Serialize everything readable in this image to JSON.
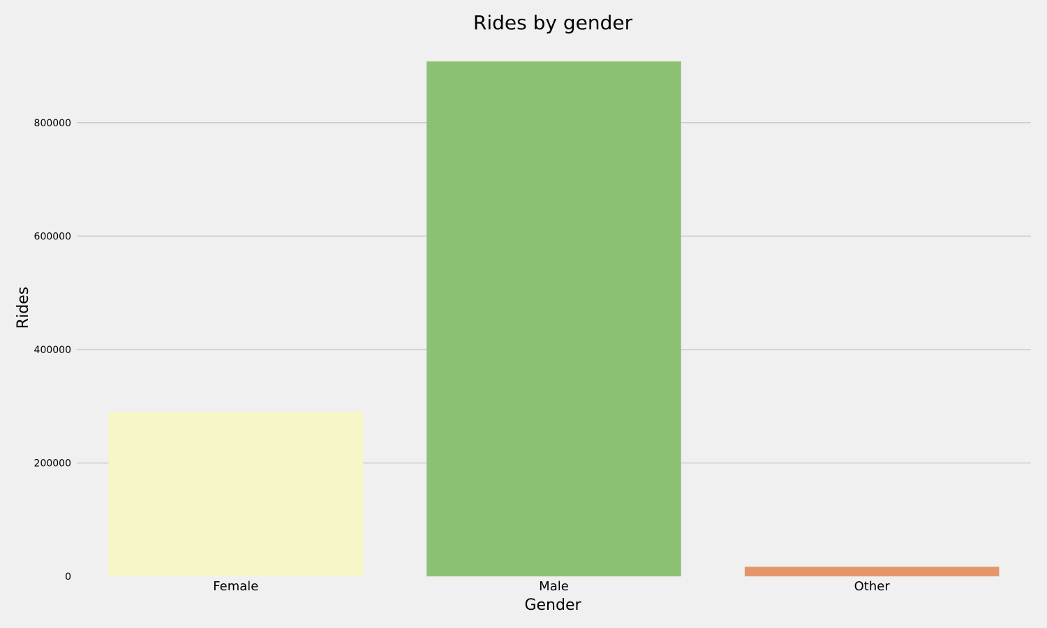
{
  "chart_data": {
    "type": "bar",
    "title": "Rides by gender",
    "xlabel": "Gender",
    "ylabel": "Rides",
    "categories": [
      "Female",
      "Male",
      "Other"
    ],
    "values": [
      290000,
      908000,
      17000
    ],
    "colors": [
      "#f7f6c6",
      "#8cc073",
      "#e5956a"
    ],
    "ylim": [
      0,
      908000
    ],
    "yticks": [
      0,
      200000,
      400000,
      600000,
      800000
    ],
    "ytick_labels": [
      "0",
      "200000",
      "400000",
      "600000",
      "800000"
    ],
    "grid": "horizontal",
    "legend": "none"
  },
  "style": {
    "background": "#f0f0f0",
    "grid_color": "#cbcbcb"
  }
}
